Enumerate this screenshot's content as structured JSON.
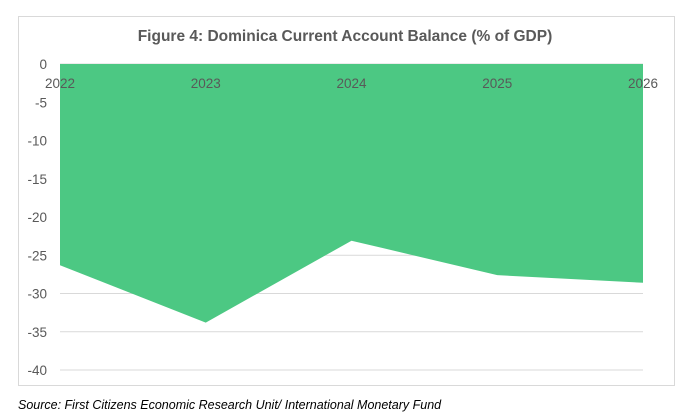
{
  "chart_data": {
    "type": "area",
    "title": "Figure 4: Dominica Current Account Balance (% of GDP)",
    "xlabel": "",
    "ylabel": "",
    "categories": [
      "2022",
      "2023",
      "2024",
      "2025",
      "2026"
    ],
    "values": [
      -26.3,
      -33.8,
      -23.1,
      -27.6,
      -28.6
    ],
    "ylim": [
      -40,
      0
    ],
    "yticks": [
      "0",
      "-5",
      "-10",
      "-15",
      "-20",
      "-25",
      "-30",
      "-35",
      "-40"
    ],
    "grid": true,
    "legend": "none",
    "fill_color": "#4cc883"
  },
  "source": "Source: First Citizens Economic Research Unit/ International Monetary Fund"
}
